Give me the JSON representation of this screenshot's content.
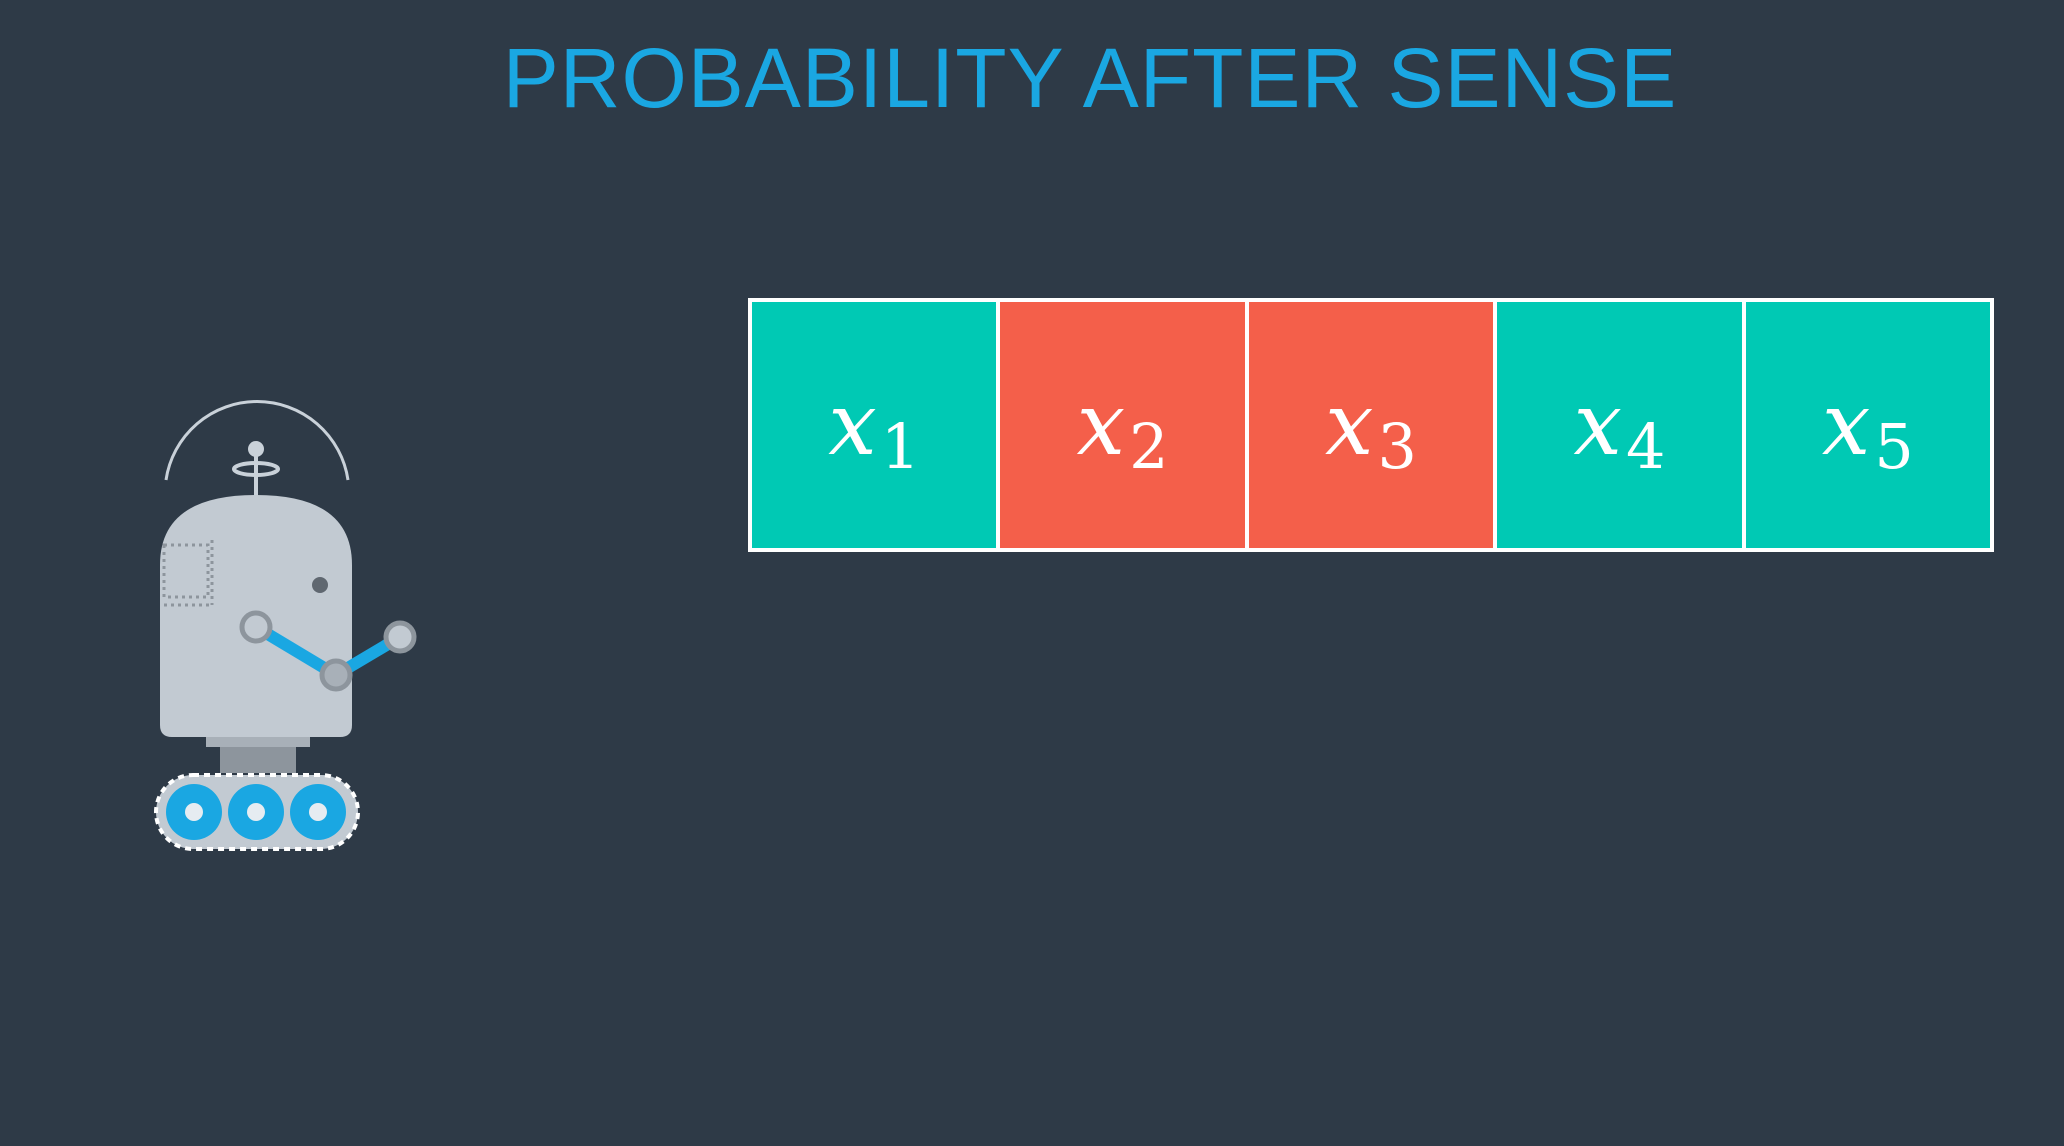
{
  "title": "PROBABILITY AFTER SENSE",
  "colors": {
    "background": "#2e3a47",
    "title": "#1aa7e2",
    "green": "#00c9b4",
    "red": "#f45f4a",
    "border": "#ffffff"
  },
  "cells": [
    {
      "var": "x",
      "sub": "1",
      "color": "green"
    },
    {
      "var": "x",
      "sub": "2",
      "color": "red"
    },
    {
      "var": "x",
      "sub": "3",
      "color": "red"
    },
    {
      "var": "x",
      "sub": "4",
      "color": "green"
    },
    {
      "var": "x",
      "sub": "5",
      "color": "green"
    }
  ],
  "robot_icon": "robot-icon"
}
